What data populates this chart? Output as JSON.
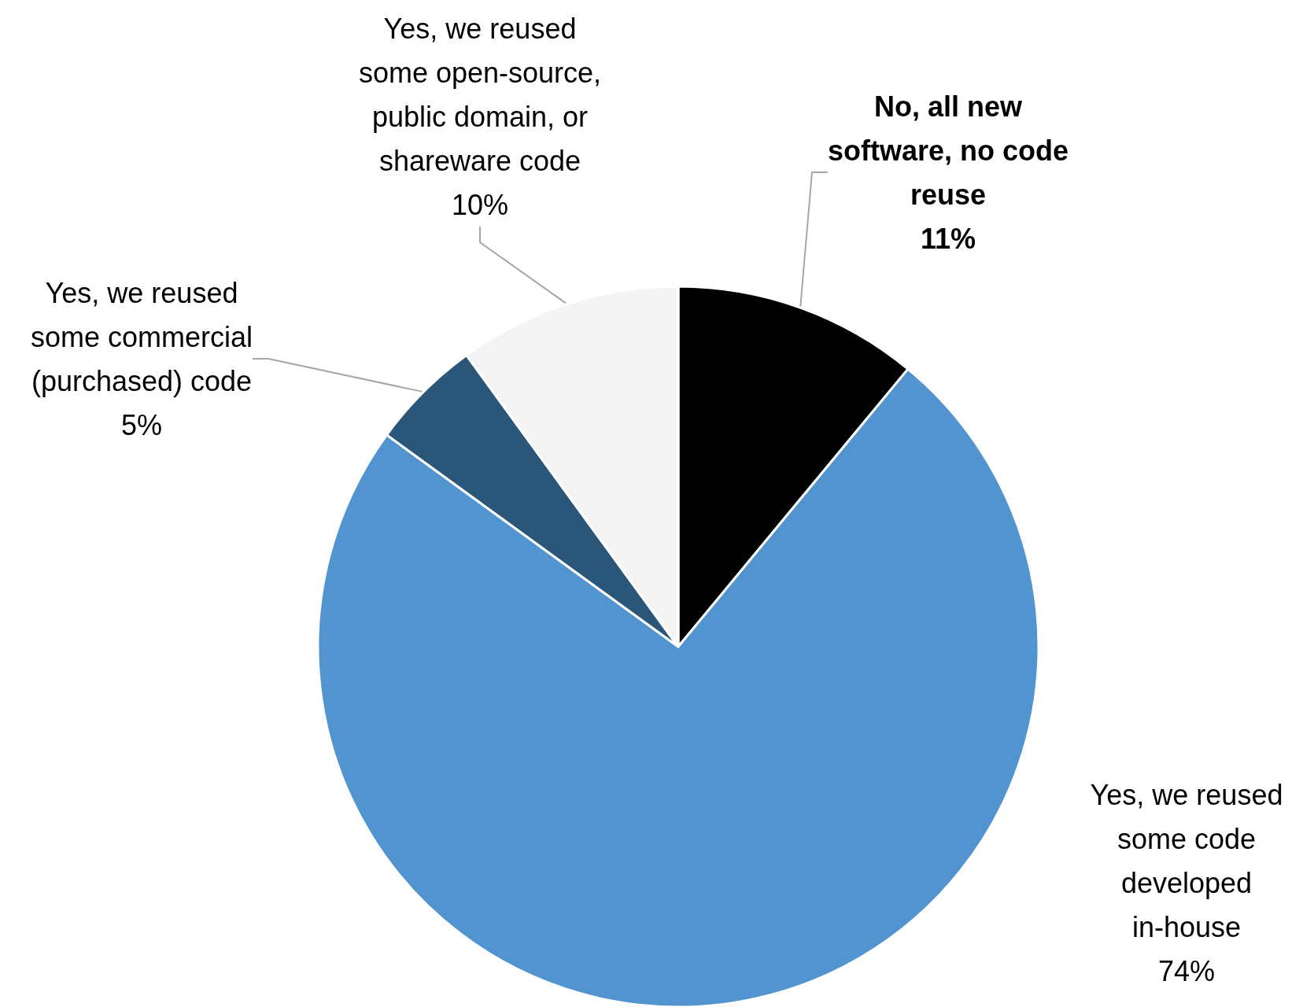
{
  "chart_data": {
    "type": "pie",
    "categories": [
      "No, all new software, no code reuse",
      "Yes, we reused some code developed in-house",
      "Yes, we reused some commercial (purchased) code",
      "Yes, we reused some open-source, public domain, or shareware code"
    ],
    "values": [
      11,
      74,
      5,
      10
    ],
    "colors": [
      "#000000",
      "#5294cf",
      "#2a5679",
      "#f4f4f4"
    ],
    "value_labels": [
      "11%",
      "74%",
      "5%",
      "10%"
    ]
  }
}
